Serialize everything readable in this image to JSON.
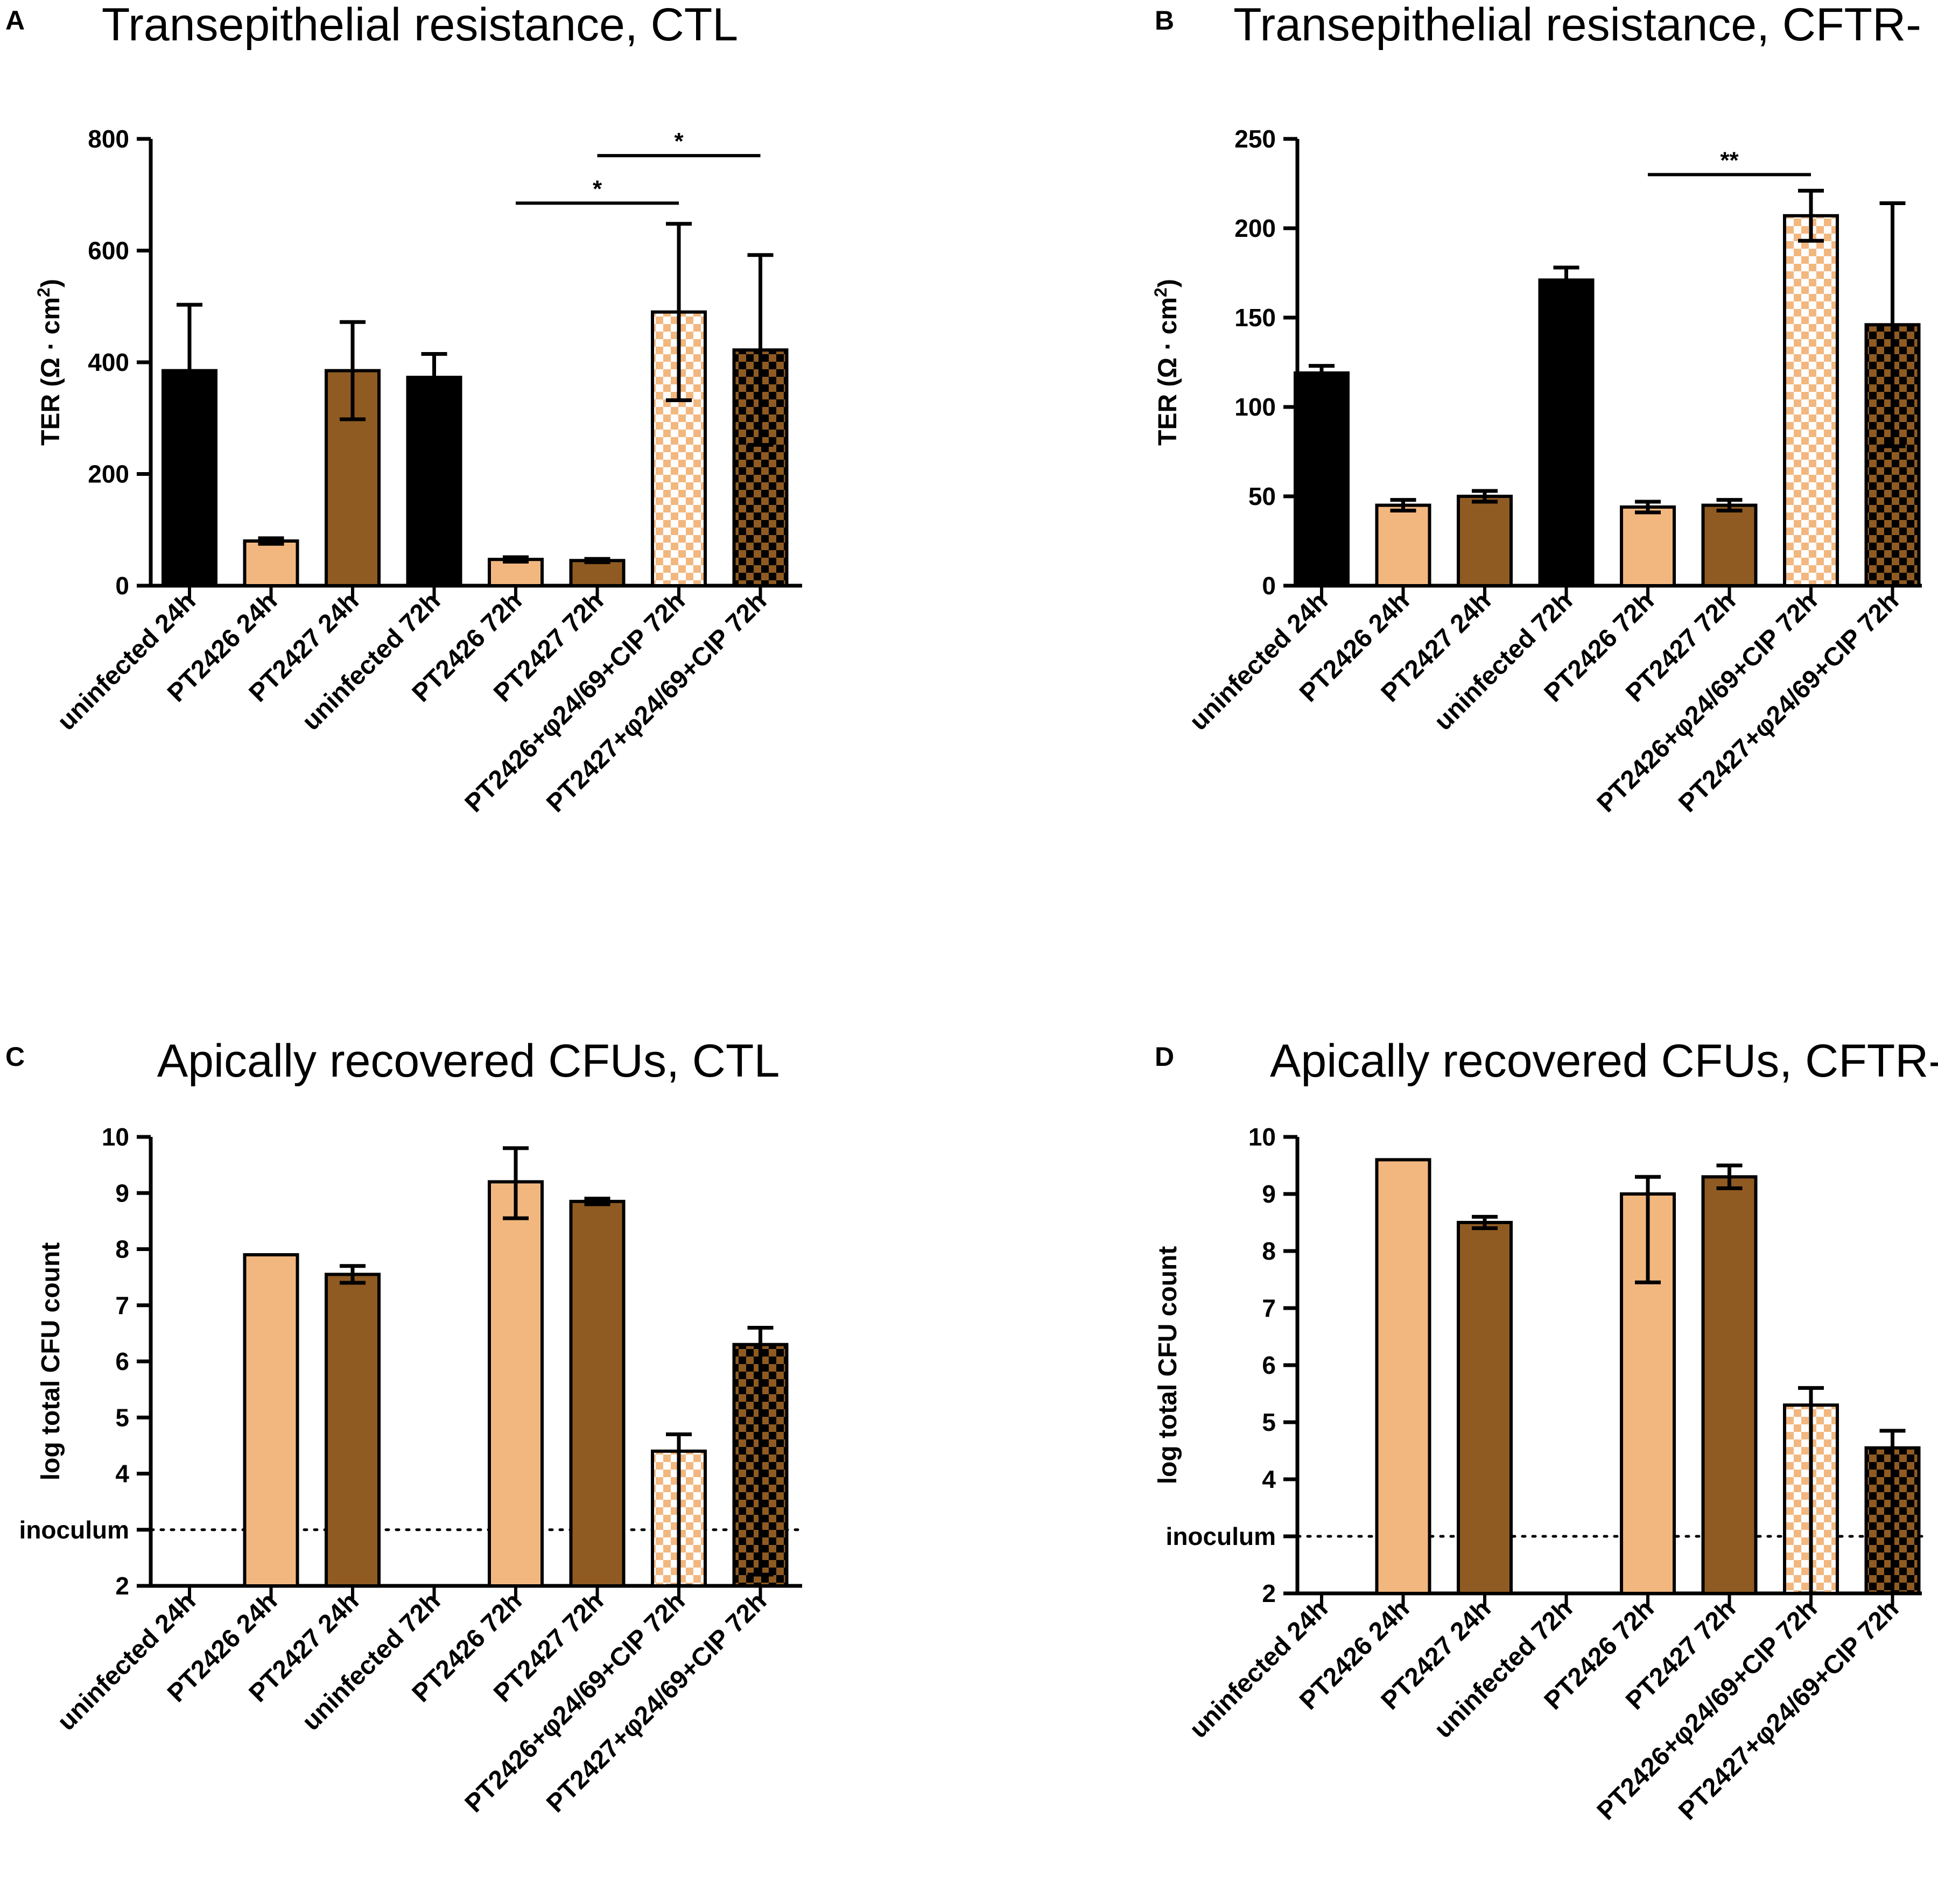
{
  "figure": {
    "description_colors": {
      "black": "#000000",
      "light": "#F2B77F",
      "dark": "#8F5B22"
    }
  },
  "chart_data": [
    {
      "panel": "A",
      "type": "bar",
      "title": "Transepithelial resistance, CTL",
      "ylabel": "TER (Ω · cm²)",
      "ylabel_main": "TER (Ω · cm",
      "ylabel_sup": "2",
      "ylabel_end": ")",
      "ylim": [
        0,
        800
      ],
      "yticks": [
        0,
        200,
        400,
        600,
        800
      ],
      "categories": [
        "uninfected 24h",
        "PT2426 24h",
        "PT2427 24h",
        "uninfected 72h",
        "PT2426 72h",
        "PT2427 72h",
        "PT2426+φ24/69+CIP 72h",
        "PT2427+φ24/69+CIP 72h"
      ],
      "values": [
        385,
        80,
        385,
        373,
        47,
        45,
        490,
        422
      ],
      "errors": [
        118,
        5,
        87,
        42,
        4,
        3,
        158,
        170
      ],
      "colors": [
        "#000000",
        "#F2B77F",
        "#8F5B22",
        "#000000",
        "#F2B77F",
        "#8F5B22",
        "#F2B77F",
        "#8F5B22"
      ],
      "checkered": [
        false,
        false,
        false,
        false,
        false,
        false,
        true,
        true
      ],
      "significance": [
        {
          "from": 4,
          "to": 6,
          "y": 685,
          "label": "*"
        },
        {
          "from": 5,
          "to": 7,
          "y": 770,
          "label": "*"
        }
      ]
    },
    {
      "panel": "B",
      "type": "bar",
      "title": "Transepithelial resistance, CFTR-",
      "ylabel": "TER (Ω · cm²)",
      "ylabel_main": "TER (Ω · cm",
      "ylabel_sup": "2",
      "ylabel_end": ")",
      "ylim": [
        0,
        250
      ],
      "yticks": [
        0,
        50,
        100,
        150,
        200,
        250
      ],
      "categories": [
        "uninfected 24h",
        "PT2426 24h",
        "PT2427 24h",
        "uninfected 72h",
        "PT2426 72h",
        "PT2427 72h",
        "PT2426+φ24/69+CIP 72h",
        "PT2427+φ24/69+CIP 72h"
      ],
      "values": [
        119,
        45,
        50,
        171,
        44,
        45,
        207,
        146
      ],
      "errors": [
        4,
        3,
        3,
        7,
        3,
        3,
        14,
        68
      ],
      "colors": [
        "#000000",
        "#F2B77F",
        "#8F5B22",
        "#000000",
        "#F2B77F",
        "#8F5B22",
        "#F2B77F",
        "#8F5B22"
      ],
      "checkered": [
        false,
        false,
        false,
        false,
        false,
        false,
        true,
        true
      ],
      "significance": [
        {
          "from": 4,
          "to": 6,
          "y": 230,
          "label": "**"
        }
      ]
    },
    {
      "panel": "C",
      "type": "bar",
      "title": "Apically recovered CFUs, CTL",
      "ylabel": "log total CFU count",
      "ylim": [
        2,
        10
      ],
      "yticks": [
        2,
        3,
        4,
        5,
        6,
        7,
        8,
        9,
        10
      ],
      "yticklabels": [
        "2",
        "inoculum",
        "4",
        "5",
        "6",
        "7",
        "8",
        "9",
        "10"
      ],
      "reference_line": {
        "y": 3,
        "label": "inoculum"
      },
      "categories": [
        "uninfected 24h",
        "PT2426 24h",
        "PT2427 24h",
        "uninfected 72h",
        "PT2426 72h",
        "PT2427 72h",
        "PT2426+φ24/69+CIP 72h",
        "PT2427+φ24/69+CIP 72h"
      ],
      "values": [
        2,
        7.9,
        7.55,
        2,
        9.2,
        8.85,
        4.4,
        6.3
      ],
      "errors": [
        0,
        0,
        0.15,
        0,
        0.6,
        0.05,
        0.3,
        0.3
      ],
      "errors_low": [
        0,
        0,
        0.15,
        0,
        0.65,
        0.05,
        2.4,
        4.1
      ],
      "colors": [
        "#000000",
        "#F2B77F",
        "#8F5B22",
        "#000000",
        "#F2B77F",
        "#8F5B22",
        "#F2B77F",
        "#8F5B22"
      ],
      "checkered": [
        false,
        false,
        false,
        false,
        false,
        false,
        true,
        true
      ]
    },
    {
      "panel": "D",
      "type": "bar",
      "title": "Apically recovered CFUs, CFTR-",
      "ylabel": "log total CFU count",
      "ylim": [
        2,
        10
      ],
      "yticks": [
        2,
        3,
        4,
        5,
        6,
        7,
        8,
        9,
        10
      ],
      "yticklabels": [
        "2",
        "inoculum",
        "4",
        "5",
        "6",
        "7",
        "8",
        "9",
        "10"
      ],
      "reference_line": {
        "y": 3,
        "label": "inoculum"
      },
      "categories": [
        "uninfected 24h",
        "PT2426 24h",
        "PT2427 24h",
        "uninfected 72h",
        "PT2426 72h",
        "PT2427 72h",
        "PT2426+φ24/69+CIP 72h",
        "PT2427+φ24/69+CIP 72h"
      ],
      "values": [
        2,
        9.6,
        8.5,
        2,
        9.0,
        9.3,
        5.3,
        4.55
      ],
      "errors": [
        0,
        0,
        0.1,
        0,
        0.3,
        0.2,
        0.3,
        0.3
      ],
      "errors_low": [
        0,
        0,
        0.1,
        0,
        1.55,
        0.2,
        3.3,
        2.55
      ],
      "colors": [
        "#000000",
        "#F2B77F",
        "#8F5B22",
        "#000000",
        "#F2B77F",
        "#8F5B22",
        "#F2B77F",
        "#8F5B22"
      ],
      "checkered": [
        false,
        false,
        false,
        false,
        false,
        false,
        true,
        true
      ]
    }
  ]
}
